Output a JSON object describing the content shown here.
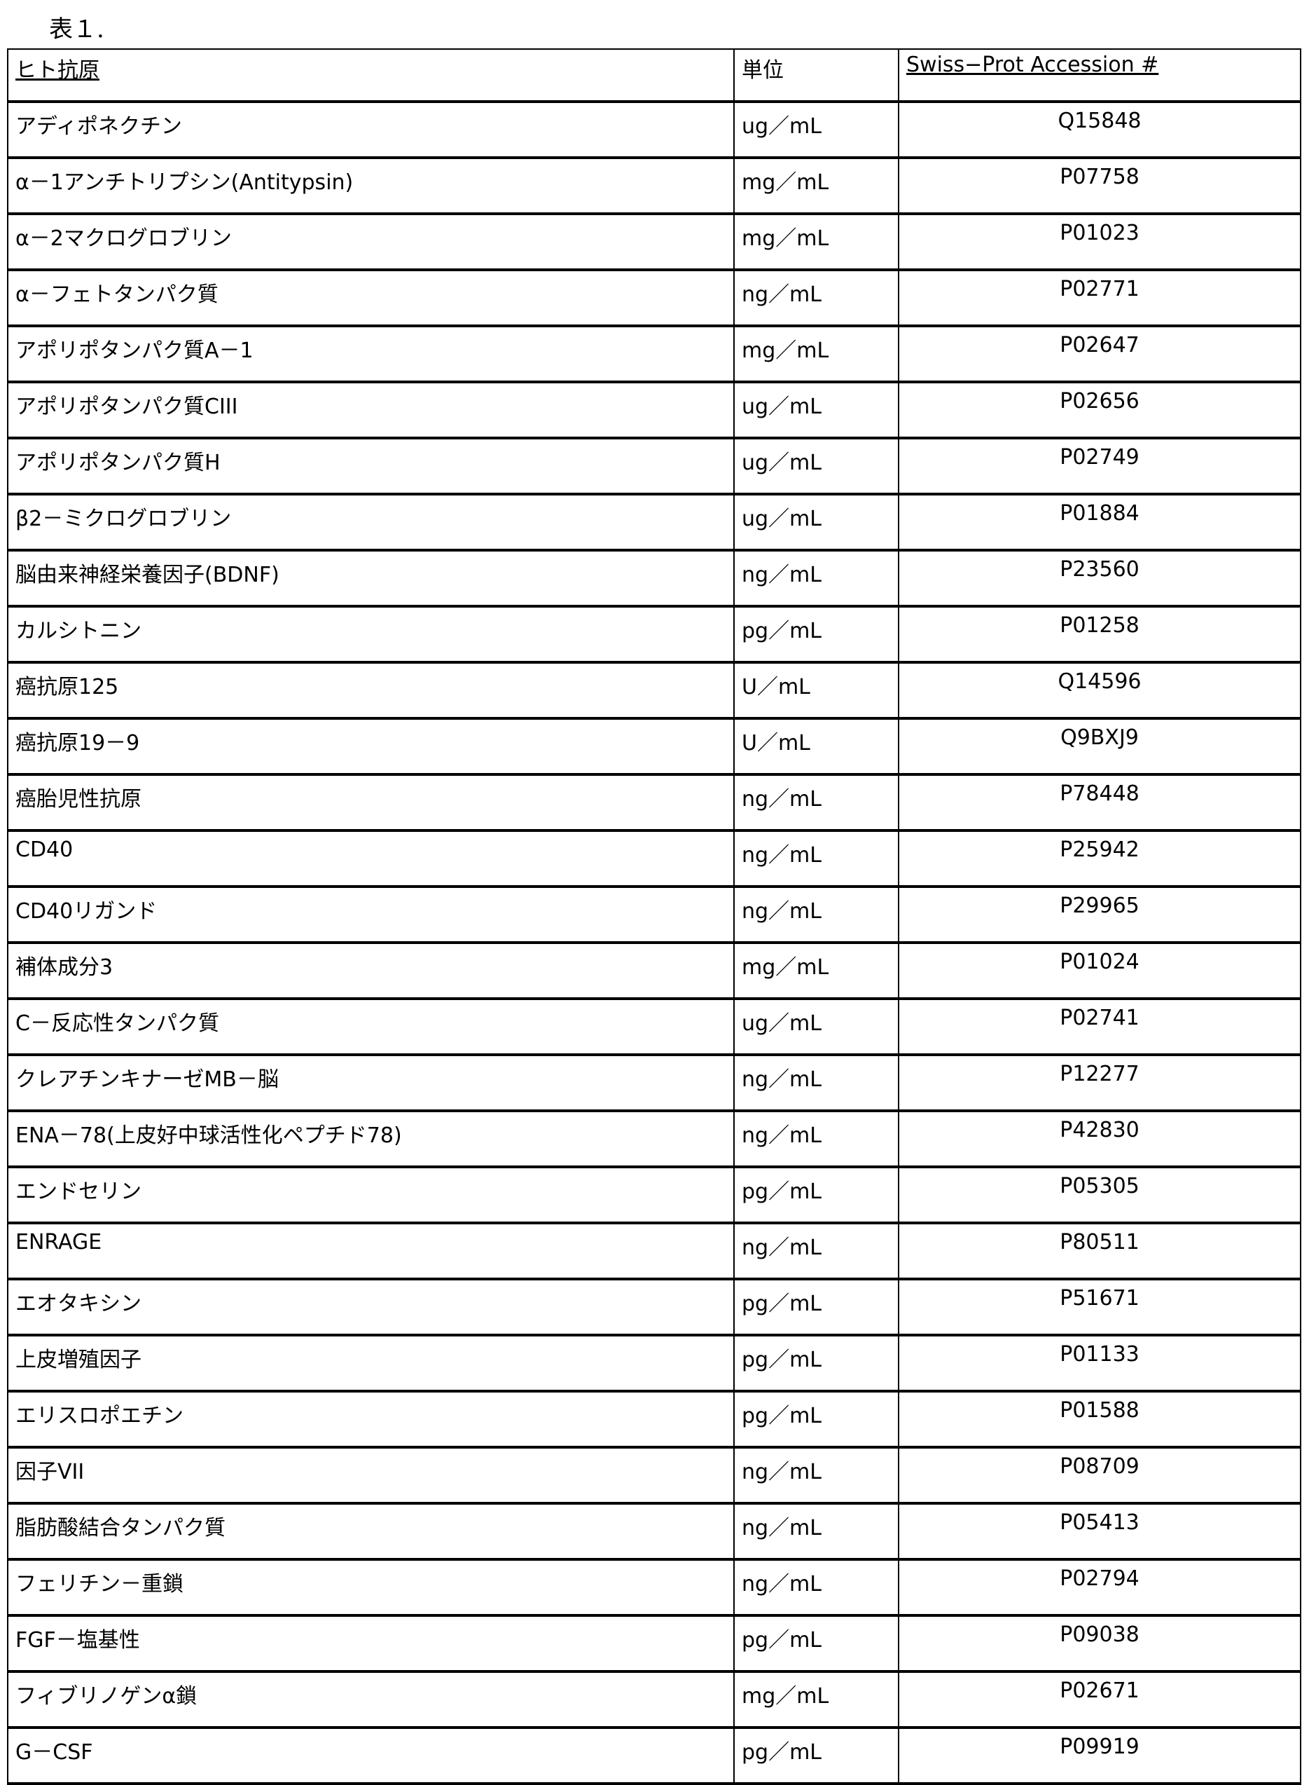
{
  "title": "表１.",
  "headers": [
    "ヒト抗原",
    "単位",
    "Swiss−Prot Accession #"
  ],
  "rows": [
    [
      "アディポネクチン",
      "ug／mL",
      "Q15848"
    ],
    [
      "α－1アンチトリプシン(Antitypsin)",
      "mg／mL",
      "P07758"
    ],
    [
      "α－2マクログロブリン",
      "mg／mL",
      "P01023"
    ],
    [
      "α－フェトタンパク質",
      "ng／mL",
      "P02771"
    ],
    [
      "アポリポタンパク質A－1",
      "mg／mL",
      "P02647"
    ],
    [
      "アポリポタンパク質CIII",
      "ug／mL",
      "P02656"
    ],
    [
      "アポリポタンパク質H",
      "ug／mL",
      "P02749"
    ],
    [
      "β2－ミクログロブリン",
      "ug／mL",
      "P01884"
    ],
    [
      "脳由来神経栄養因子(BDNF)",
      "ng／mL",
      "P23560"
    ],
    [
      "カルシトニン",
      "pg／mL",
      "P01258"
    ],
    [
      "癌抗原125",
      "U／mL",
      "Q14596"
    ],
    [
      "癌抗原19－9",
      "U／mL",
      "Q9BXJ9"
    ],
    [
      "癌胎児性抗原",
      "ng／mL",
      "P78448"
    ],
    [
      "CD40",
      "ng／mL",
      "P25942"
    ],
    [
      "CD40リガンド",
      "ng／mL",
      "P29965"
    ],
    [
      "補体成分3",
      "mg／mL",
      "P01024"
    ],
    [
      "C－反応性タンパク質",
      "ug／mL",
      "P02741"
    ],
    [
      "クレアチンキナーゼMB－脳",
      "ng／mL",
      "P12277"
    ],
    [
      "ENA－78(上皮好中球活性化ペプチド78)",
      "ng／mL",
      "P42830"
    ],
    [
      "エンドセリン",
      "pg／mL",
      "P05305"
    ],
    [
      "ENRAGE",
      "ng／mL",
      "P80511"
    ],
    [
      "エオタキシン",
      "pg／mL",
      "P51671"
    ],
    [
      "上皮増殖因子",
      "pg／mL",
      "P01133"
    ],
    [
      "エリスロポエチン",
      "pg／mL",
      "P01588"
    ],
    [
      "因子VII",
      "ng／mL",
      "P08709"
    ],
    [
      "脂肪酸結合タンパク質",
      "ng／mL",
      "P05413"
    ],
    [
      "フェリチン－重鎖",
      "ng／mL",
      "P02794"
    ],
    [
      "FGF－塩基性",
      "pg／mL",
      "P09038"
    ],
    [
      "フィブリノゲンα鎖",
      "mg／mL",
      "P02671"
    ],
    [
      "G－CSF",
      "pg／mL",
      "P09919"
    ]
  ]
}
